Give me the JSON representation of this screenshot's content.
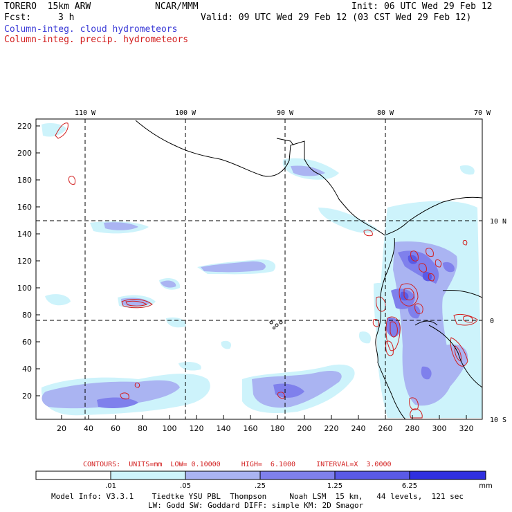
{
  "header": {
    "model": "TORERO  15km ARW",
    "center": "NCAR/MMM",
    "init": "Init: 06 UTC Wed 29 Feb 12",
    "fcst_label": "Fcst:",
    "fcst_value": "3 h",
    "valid": "Valid: 09 UTC Wed 29 Feb 12 (03 CST Wed 29 Feb 12)",
    "field1": "Column-integ. cloud hydrometeors",
    "field2": "Column-integ. precip. hydrometeors"
  },
  "colors": {
    "cloud_label": "#3a3ad6",
    "precip_label": "#d21e1e",
    "contour": "#d21e1e",
    "coast": "#000000",
    "shade_levels": [
      "#ffffff",
      "#cdf3fb",
      "#aab4f2",
      "#7f80ec",
      "#5a5ae6",
      "#3030e0"
    ]
  },
  "top_axis_labels": [
    "110 W",
    "100 W",
    "90 W",
    "80 W",
    "70 W"
  ],
  "right_axis_labels": [
    "10 N",
    "0",
    "10 S"
  ],
  "y_ticks": [
    "220",
    "200",
    "180",
    "160",
    "140",
    "120",
    "100",
    "80",
    "60",
    "40",
    "20"
  ],
  "x_ticks": [
    "20",
    "40",
    "60",
    "80",
    "100",
    "120",
    "140",
    "160",
    "180",
    "200",
    "220",
    "240",
    "260",
    "280",
    "300",
    "320"
  ],
  "contour_info": "CONTOURS:  UNITS=mm  LOW= 0.10000     HIGH=  6.1000     INTERVAL=X  3.0000",
  "colorbar": {
    "labels": [
      ".01",
      ".05",
      ".25",
      "1.25",
      "6.25"
    ],
    "units": "mm"
  },
  "model_info": {
    "line1": "Model Info: V3.3.1    Tiedtke YSU PBL  Thompson     Noah LSM  15 km,   44 levels,  121 sec",
    "line2": "LW: Godd SW: Goddard DIFF: simple KM: 2D Smagor"
  }
}
